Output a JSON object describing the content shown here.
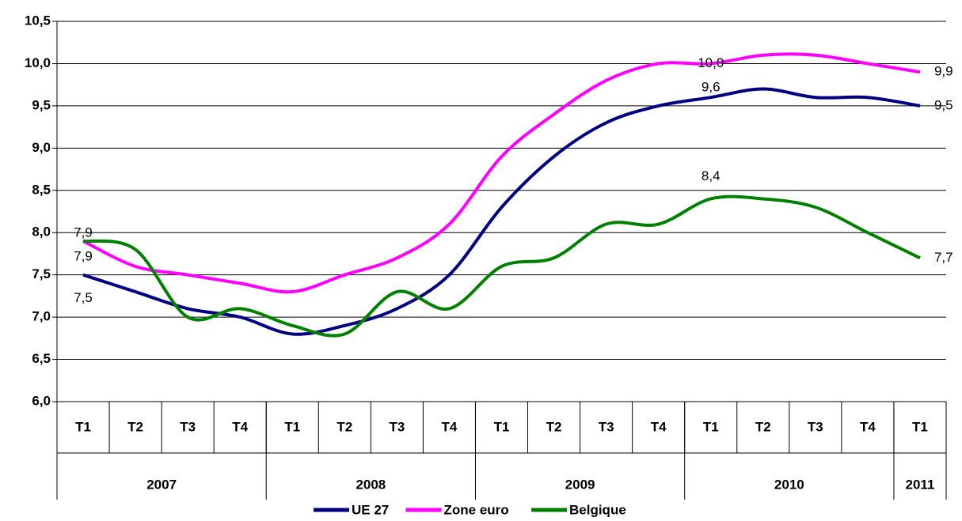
{
  "chart_data": {
    "type": "line",
    "categories": [
      "T1",
      "T2",
      "T3",
      "T4",
      "T1",
      "T2",
      "T3",
      "T4",
      "T1",
      "T2",
      "T3",
      "T4",
      "T1",
      "T2",
      "T3",
      "T4",
      "T1"
    ],
    "year_groups": [
      {
        "name": "2007",
        "count": 4
      },
      {
        "name": "2008",
        "count": 4
      },
      {
        "name": "2009",
        "count": 4
      },
      {
        "name": "2010",
        "count": 4
      },
      {
        "name": "2011",
        "count": 1
      }
    ],
    "series": [
      {
        "name": "UE 27",
        "color": "#000080",
        "values": [
          7.5,
          7.3,
          7.1,
          7.0,
          6.8,
          6.9,
          7.1,
          7.5,
          8.3,
          8.9,
          9.3,
          9.5,
          9.6,
          9.7,
          9.6,
          9.6,
          9.5
        ],
        "value_labels": [
          "7,5",
          null,
          null,
          null,
          null,
          null,
          null,
          null,
          null,
          null,
          null,
          null,
          "9,6",
          null,
          null,
          null,
          "9,5"
        ]
      },
      {
        "name": "Zone euro",
        "color": "#ff00ff",
        "values": [
          7.9,
          7.6,
          7.5,
          7.4,
          7.3,
          7.5,
          7.7,
          8.1,
          8.9,
          9.4,
          9.8,
          10.0,
          10.0,
          10.1,
          10.1,
          10.0,
          9.9
        ],
        "value_labels": [
          "7,9",
          null,
          null,
          null,
          null,
          null,
          null,
          null,
          null,
          null,
          null,
          null,
          "10,0",
          null,
          null,
          null,
          "9,9"
        ]
      },
      {
        "name": "Belgique",
        "color": "#008000",
        "values": [
          7.9,
          7.8,
          7.0,
          7.1,
          6.9,
          6.8,
          7.3,
          7.1,
          7.6,
          7.7,
          8.1,
          8.1,
          8.4,
          8.4,
          8.3,
          8.0,
          7.7
        ],
        "value_labels": [
          "7,9",
          null,
          null,
          null,
          null,
          null,
          null,
          null,
          null,
          null,
          null,
          null,
          "8,4",
          null,
          null,
          null,
          "7,7"
        ]
      }
    ],
    "ylim": [
      6.0,
      10.5
    ],
    "yticks": [
      {
        "value": 6.0,
        "label": "6,0"
      },
      {
        "value": 6.5,
        "label": "6,5"
      },
      {
        "value": 7.0,
        "label": "7,0"
      },
      {
        "value": 7.5,
        "label": "7,5"
      },
      {
        "value": 8.0,
        "label": "8,0"
      },
      {
        "value": 8.5,
        "label": "8,5"
      },
      {
        "value": 9.0,
        "label": "9,0"
      },
      {
        "value": 9.5,
        "label": "9,5"
      },
      {
        "value": 10.0,
        "label": "10,0"
      },
      {
        "value": 10.5,
        "label": "10,5"
      }
    ],
    "grid": true,
    "legend": "bottom"
  }
}
